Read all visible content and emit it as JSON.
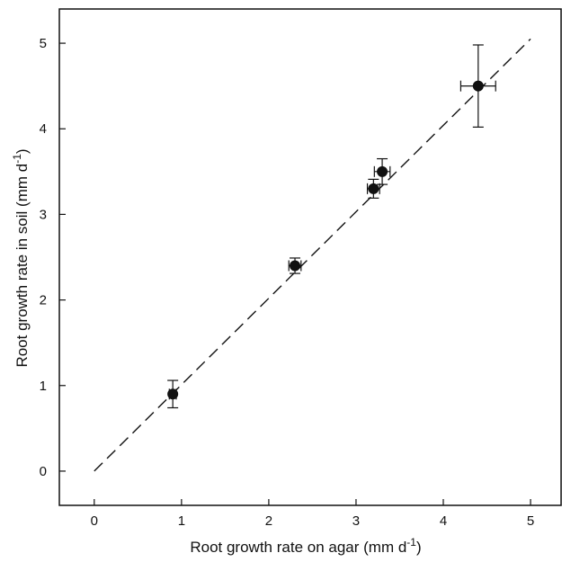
{
  "chart_data": {
    "type": "scatter",
    "xlabel": "Root growth rate on agar (mm d",
    "xlabel_sup": "-1",
    "xlabel_close": ")",
    "ylabel": "Root growth rate in soil (mm d",
    "ylabel_sup": "-1",
    "ylabel_close": ")",
    "xlim": [
      -0.4,
      5.35
    ],
    "ylim": [
      -0.4,
      5.4
    ],
    "xticks": [
      0,
      1,
      2,
      3,
      4,
      5
    ],
    "yticks": [
      0,
      1,
      2,
      3,
      4,
      5
    ],
    "xtick_labels": [
      "0",
      "1",
      "2",
      "3",
      "4",
      "5"
    ],
    "ytick_labels": [
      "0",
      "1",
      "2",
      "3",
      "4",
      "5"
    ],
    "points": [
      {
        "x": 0.9,
        "y": 0.9,
        "xerr": 0.04,
        "yerr": 0.16
      },
      {
        "x": 2.3,
        "y": 2.4,
        "xerr": 0.07,
        "yerr": 0.09
      },
      {
        "x": 3.2,
        "y": 3.3,
        "xerr": 0.07,
        "yerr": 0.11
      },
      {
        "x": 3.3,
        "y": 3.5,
        "xerr": 0.09,
        "yerr": 0.15
      },
      {
        "x": 4.4,
        "y": 4.5,
        "xerr": 0.2,
        "yerr": 0.48
      }
    ],
    "fit_line": {
      "x": [
        0,
        5
      ],
      "y": [
        0,
        5.05
      ],
      "style": "dashed"
    },
    "grid": false,
    "colors": {
      "marker": "#111111",
      "axis": "#111111"
    }
  }
}
